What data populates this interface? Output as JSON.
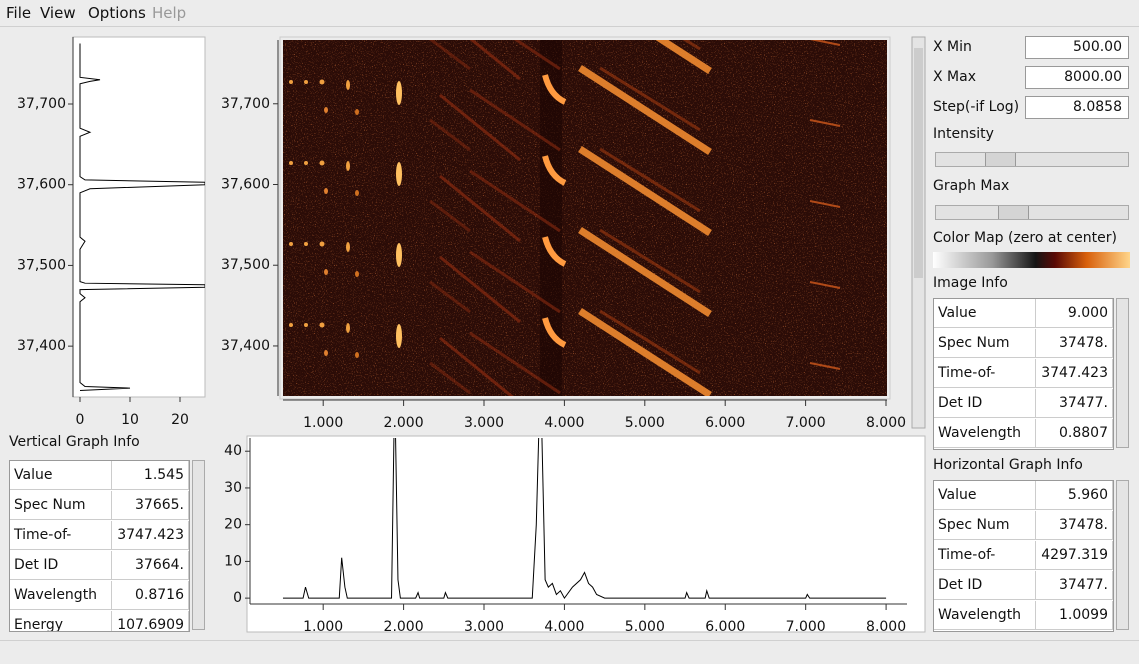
{
  "menu": [
    "File",
    "View",
    "Options",
    "Help"
  ],
  "vertical_graph": {
    "spec": [
      37345,
      37348,
      37350,
      37355,
      37400,
      37455,
      37460,
      37465,
      37470,
      37473,
      37476,
      37478,
      37480,
      37520,
      37530,
      37535,
      37590,
      37595,
      37600,
      37603,
      37606,
      37610,
      37660,
      37665,
      37670,
      37725,
      37728,
      37730,
      37733,
      37775
    ],
    "counts": [
      0,
      10,
      1,
      0,
      0,
      0,
      1,
      0,
      0,
      25,
      25,
      1,
      0,
      0,
      1,
      0,
      0,
      2,
      25,
      25,
      1,
      0,
      0,
      2,
      0,
      0,
      2,
      4,
      0,
      0
    ],
    "spec_lim": [
      37337,
      37783
    ],
    "spec_ticks": [
      {
        "value": 37400,
        "label": "37,400"
      },
      {
        "value": 37500,
        "label": "37,500"
      },
      {
        "value": 37600,
        "label": "37,600"
      },
      {
        "value": 37700,
        "label": "37,700"
      }
    ],
    "count_lim": [
      -1.4,
      25
    ],
    "count_ticks": [
      0,
      10,
      20
    ]
  },
  "image": {
    "x_lim": [
      0.5,
      8.0
    ],
    "x_ticks": [
      {
        "value": 1,
        "label": "1.000"
      },
      {
        "value": 2,
        "label": "2.000"
      },
      {
        "value": 3,
        "label": "3.000"
      },
      {
        "value": 4,
        "label": "4.000"
      },
      {
        "value": 5,
        "label": "5.000"
      },
      {
        "value": 6,
        "label": "6.000"
      },
      {
        "value": 7,
        "label": "7.000"
      },
      {
        "value": 8,
        "label": "8.000"
      }
    ],
    "y_lim": [
      37338,
      37779
    ],
    "y_ticks": [
      {
        "value": 37400,
        "label": "37,400"
      },
      {
        "value": 37500,
        "label": "37,500"
      },
      {
        "value": 37600,
        "label": "37,600"
      },
      {
        "value": 37700,
        "label": "37,700"
      }
    ]
  },
  "horizontal_graph": {
    "x": [
      0.5,
      0.75,
      0.78,
      0.82,
      1.2,
      1.23,
      1.27,
      1.3,
      1.85,
      1.88,
      1.9,
      1.93,
      1.96,
      2.15,
      2.18,
      2.2,
      2.5,
      2.52,
      2.55,
      3.6,
      3.65,
      3.68,
      3.72,
      3.76,
      3.8,
      3.85,
      3.9,
      3.95,
      4.0,
      4.1,
      4.2,
      4.25,
      4.3,
      4.35,
      4.4,
      4.5,
      5.5,
      5.52,
      5.55,
      5.75,
      5.77,
      5.8,
      7.0,
      7.02,
      7.05,
      8.0
    ],
    "values": [
      0,
      0,
      3,
      0,
      0,
      11,
      3,
      0,
      0,
      44,
      44,
      5,
      0,
      0,
      1.5,
      0,
      0,
      1.5,
      0,
      0,
      20,
      44,
      44,
      5,
      3,
      4,
      1,
      2,
      0,
      3,
      5,
      7,
      4,
      3,
      1,
      0,
      0,
      1.5,
      0,
      0,
      2,
      0,
      0,
      1,
      0,
      0
    ],
    "x_lim": [
      0.09,
      8.26
    ],
    "x_ticks": [
      {
        "value": 1,
        "label": "1.000"
      },
      {
        "value": 2,
        "label": "2.000"
      },
      {
        "value": 3,
        "label": "3.000"
      },
      {
        "value": 4,
        "label": "4.000"
      },
      {
        "value": 5,
        "label": "5.000"
      },
      {
        "value": 6,
        "label": "6.000"
      },
      {
        "value": 7,
        "label": "7.000"
      },
      {
        "value": 8,
        "label": "8.000"
      }
    ],
    "y_lim": [
      -1.6,
      43.6
    ],
    "y_ticks": [
      0,
      10,
      20,
      30,
      40
    ]
  },
  "controls": {
    "fields": [
      {
        "label": "X Min",
        "value": "500.00"
      },
      {
        "label": "X Max",
        "value": "8000.00"
      },
      {
        "label": "Step(-if Log)",
        "value": "8.0858"
      }
    ],
    "intensity_label": "Intensity",
    "graph_max_label": "Graph Max",
    "color_map_label": "Color Map (zero at center)"
  },
  "image_info": {
    "title": "Image Info",
    "rows": [
      [
        "Value",
        "9.000"
      ],
      [
        "Spec Num",
        "37478."
      ],
      [
        "Time-of-flight",
        "3747.423"
      ],
      [
        "Det ID",
        "37477."
      ],
      [
        "Wavelength",
        "0.8807"
      ]
    ]
  },
  "vertical_graph_info": {
    "title": "Vertical Graph Info",
    "rows": [
      [
        "Value",
        "1.545"
      ],
      [
        "Spec Num",
        "37665."
      ],
      [
        "Time-of-flight",
        "3747.423"
      ],
      [
        "Det ID",
        "37664."
      ],
      [
        "Wavelength",
        "0.8716"
      ],
      [
        "Energy",
        "107.6909"
      ]
    ]
  },
  "horizontal_graph_info": {
    "title": "Horizontal Graph Info",
    "rows": [
      [
        "Value",
        "5.960"
      ],
      [
        "Spec Num",
        "37478."
      ],
      [
        "Time-of-flight",
        "4297.319"
      ],
      [
        "Det ID",
        "37477."
      ],
      [
        "Wavelength",
        "1.0099"
      ]
    ]
  }
}
